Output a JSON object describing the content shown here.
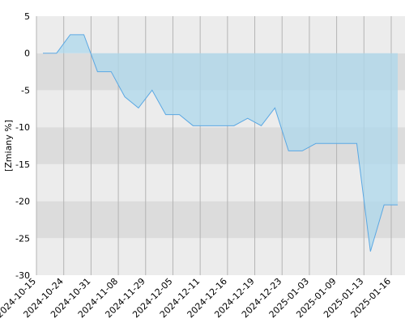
{
  "chart_data": {
    "type": "area",
    "y_label": "[Zmiany %]",
    "categories": [
      "2024-10-15",
      null,
      "2024-10-24",
      null,
      "2024-10-31",
      null,
      "2024-11-08",
      null,
      "2024-11-29",
      null,
      "2024-12-05",
      null,
      "2024-12-11",
      null,
      "2024-12-16",
      null,
      "2024-12-19",
      null,
      "2024-12-23",
      null,
      "2025-01-03",
      null,
      "2025-01-09",
      null,
      "2025-01-13",
      null,
      "2025-01-16"
    ],
    "values": [
      0,
      0,
      2.5,
      2.5,
      -2.5,
      -2.5,
      -5.9,
      -7.4,
      -5,
      -8.3,
      -8.3,
      -9.8,
      -9.8,
      -9.8,
      -9.8,
      -8.8,
      -9.8,
      -7.4,
      -13.2,
      -13.2,
      -12.2,
      -12.2,
      -12.2,
      -12.2,
      -26.8,
      -20.5,
      -20.5
    ],
    "color": "#5ba8e3",
    "fill_color": "#add8ec",
    "ylim": [
      -30,
      5
    ],
    "yticks": [
      -30,
      -25,
      -20,
      -15,
      -10,
      -5,
      0,
      5
    ],
    "grid": true
  }
}
